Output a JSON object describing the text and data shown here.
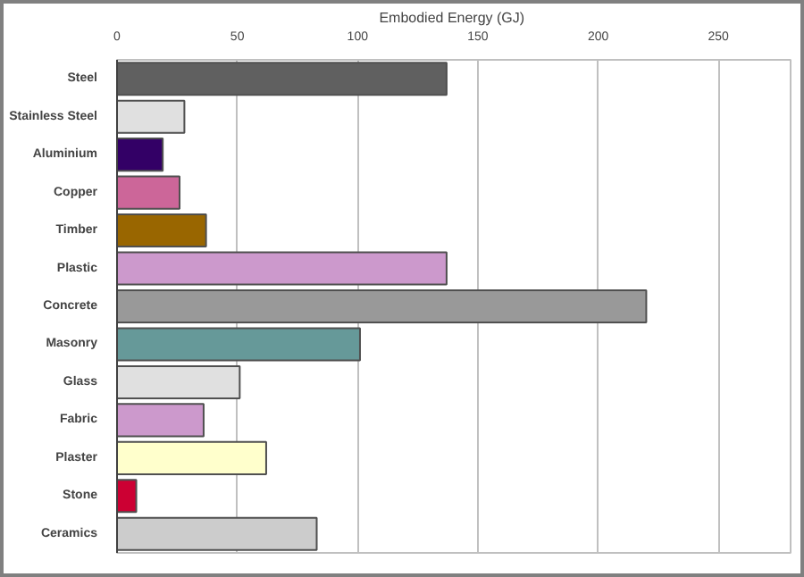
{
  "chart_data": {
    "type": "bar",
    "orientation": "horizontal",
    "xlabel": "Embodied Energy  (GJ)",
    "categories": [
      "Steel",
      "Stainless Steel",
      "Aluminium",
      "Copper",
      "Timber",
      "Plastic",
      "Concrete",
      "Masonry",
      "Glass",
      "Fabric",
      "Plaster",
      "Stone",
      "Ceramics"
    ],
    "values": [
      137,
      28,
      19,
      26,
      37,
      137,
      220,
      101,
      51,
      36,
      62,
      8,
      83
    ],
    "colors": [
      "#606060",
      "#e0e0e0",
      "#330066",
      "#cc6699",
      "#996600",
      "#cc99cc",
      "#999999",
      "#669999",
      "#e0e0e0",
      "#cc99cc",
      "#ffffcc",
      "#cc0033",
      "#cccccc"
    ],
    "xlim": [
      0,
      280
    ],
    "xticks": [
      0,
      50,
      100,
      150,
      200,
      250
    ],
    "grid": "x"
  }
}
